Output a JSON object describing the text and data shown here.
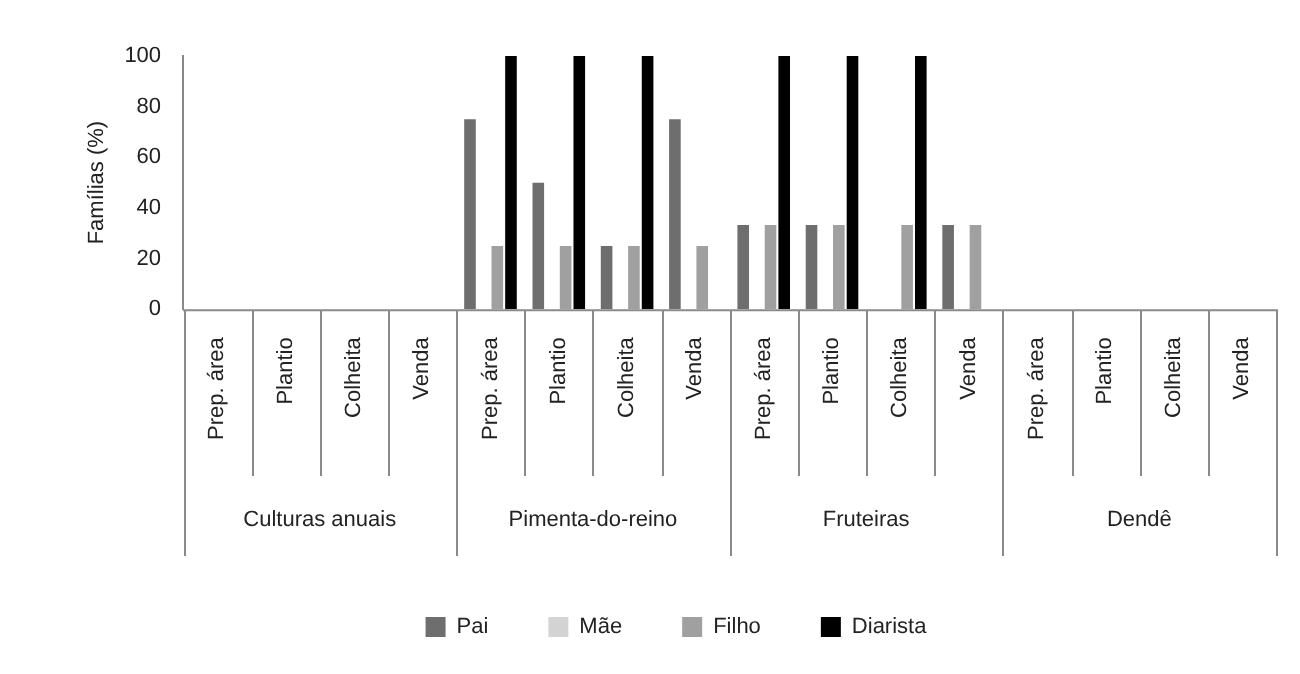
{
  "chart_data": {
    "type": "bar",
    "ylabel": "Famílias (%)",
    "categories": [
      "Prep. área",
      "Plantio",
      "Colheita",
      "Venda",
      "Prep. área",
      "Plantio",
      "Colheita",
      "Venda",
      "Prep. área",
      "Plantio",
      "Colheita",
      "Venda",
      "Prep. área",
      "Plantio",
      "Colheita",
      "Venda"
    ],
    "annotations": [
      "Culturas anuais",
      "Pimenta-do-reino",
      "Fruteiras",
      "Dendê"
    ],
    "series": [
      {
        "name": "Pai",
        "color": "#6e6e6e",
        "values": [
          0,
          0,
          0,
          0,
          75,
          50,
          25,
          75,
          33.3,
          33.3,
          0,
          33.3,
          0,
          0,
          0,
          0
        ]
      },
      {
        "name": "Mãe",
        "color": "#d3d3d3",
        "values": [
          0,
          0,
          0,
          0,
          0,
          0,
          0,
          0,
          0,
          0,
          0,
          0,
          0,
          0,
          0,
          0
        ]
      },
      {
        "name": "Filho",
        "color": "#a0a0a0",
        "values": [
          0,
          0,
          0,
          0,
          25,
          25,
          25,
          25,
          33.3,
          33.3,
          33.3,
          33.3,
          0,
          0,
          0,
          0
        ]
      },
      {
        "name": "Diarista",
        "color": "#000000",
        "values": [
          0,
          0,
          0,
          0,
          100,
          100,
          100,
          0,
          100,
          100,
          100,
          0,
          0,
          0,
          0,
          0
        ]
      }
    ],
    "ylim": [
      0,
      100
    ],
    "yticks": [
      0,
      20,
      40,
      60,
      80,
      100
    ],
    "grid": false,
    "legend": "bottom"
  }
}
